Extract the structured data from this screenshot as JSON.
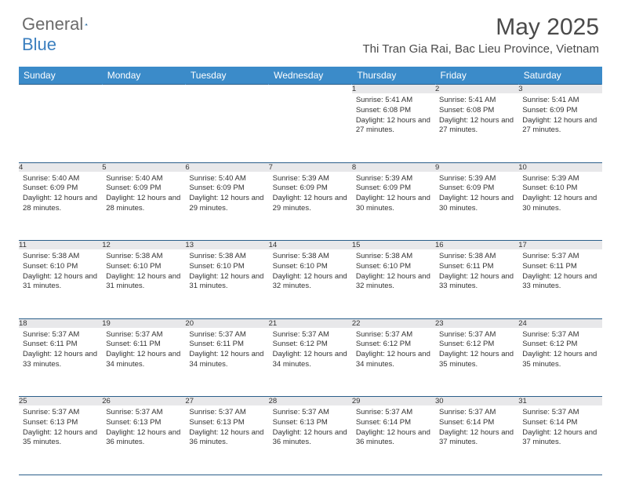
{
  "brand": {
    "word1": "General",
    "word2": "Blue"
  },
  "title": "May 2025",
  "location": "Thi Tran Gia Rai, Bac Lieu Province, Vietnam",
  "colors": {
    "header_bg": "#3b8bc9",
    "header_text": "#ffffff",
    "row_border": "#2b5f8a",
    "daynum_bg": "#e8e8ea",
    "page_bg": "#ffffff",
    "brand_gray": "#6b6b6b",
    "brand_blue": "#3b7fbf"
  },
  "fonts": {
    "title_size_pt": 22,
    "location_size_pt": 11,
    "weekday_size_pt": 9,
    "cell_size_pt": 7,
    "daynum_size_pt": 8
  },
  "layout": {
    "columns": 7,
    "weeks": 5,
    "first_day_column_index": 4
  },
  "weekdays": [
    "Sunday",
    "Monday",
    "Tuesday",
    "Wednesday",
    "Thursday",
    "Friday",
    "Saturday"
  ],
  "days": [
    {
      "n": 1,
      "sunrise": "5:41 AM",
      "sunset": "6:08 PM",
      "daylight": "12 hours and 27 minutes."
    },
    {
      "n": 2,
      "sunrise": "5:41 AM",
      "sunset": "6:08 PM",
      "daylight": "12 hours and 27 minutes."
    },
    {
      "n": 3,
      "sunrise": "5:41 AM",
      "sunset": "6:09 PM",
      "daylight": "12 hours and 27 minutes."
    },
    {
      "n": 4,
      "sunrise": "5:40 AM",
      "sunset": "6:09 PM",
      "daylight": "12 hours and 28 minutes."
    },
    {
      "n": 5,
      "sunrise": "5:40 AM",
      "sunset": "6:09 PM",
      "daylight": "12 hours and 28 minutes."
    },
    {
      "n": 6,
      "sunrise": "5:40 AM",
      "sunset": "6:09 PM",
      "daylight": "12 hours and 29 minutes."
    },
    {
      "n": 7,
      "sunrise": "5:39 AM",
      "sunset": "6:09 PM",
      "daylight": "12 hours and 29 minutes."
    },
    {
      "n": 8,
      "sunrise": "5:39 AM",
      "sunset": "6:09 PM",
      "daylight": "12 hours and 30 minutes."
    },
    {
      "n": 9,
      "sunrise": "5:39 AM",
      "sunset": "6:09 PM",
      "daylight": "12 hours and 30 minutes."
    },
    {
      "n": 10,
      "sunrise": "5:39 AM",
      "sunset": "6:10 PM",
      "daylight": "12 hours and 30 minutes."
    },
    {
      "n": 11,
      "sunrise": "5:38 AM",
      "sunset": "6:10 PM",
      "daylight": "12 hours and 31 minutes."
    },
    {
      "n": 12,
      "sunrise": "5:38 AM",
      "sunset": "6:10 PM",
      "daylight": "12 hours and 31 minutes."
    },
    {
      "n": 13,
      "sunrise": "5:38 AM",
      "sunset": "6:10 PM",
      "daylight": "12 hours and 31 minutes."
    },
    {
      "n": 14,
      "sunrise": "5:38 AM",
      "sunset": "6:10 PM",
      "daylight": "12 hours and 32 minutes."
    },
    {
      "n": 15,
      "sunrise": "5:38 AM",
      "sunset": "6:10 PM",
      "daylight": "12 hours and 32 minutes."
    },
    {
      "n": 16,
      "sunrise": "5:38 AM",
      "sunset": "6:11 PM",
      "daylight": "12 hours and 33 minutes."
    },
    {
      "n": 17,
      "sunrise": "5:37 AM",
      "sunset": "6:11 PM",
      "daylight": "12 hours and 33 minutes."
    },
    {
      "n": 18,
      "sunrise": "5:37 AM",
      "sunset": "6:11 PM",
      "daylight": "12 hours and 33 minutes."
    },
    {
      "n": 19,
      "sunrise": "5:37 AM",
      "sunset": "6:11 PM",
      "daylight": "12 hours and 34 minutes."
    },
    {
      "n": 20,
      "sunrise": "5:37 AM",
      "sunset": "6:11 PM",
      "daylight": "12 hours and 34 minutes."
    },
    {
      "n": 21,
      "sunrise": "5:37 AM",
      "sunset": "6:12 PM",
      "daylight": "12 hours and 34 minutes."
    },
    {
      "n": 22,
      "sunrise": "5:37 AM",
      "sunset": "6:12 PM",
      "daylight": "12 hours and 34 minutes."
    },
    {
      "n": 23,
      "sunrise": "5:37 AM",
      "sunset": "6:12 PM",
      "daylight": "12 hours and 35 minutes."
    },
    {
      "n": 24,
      "sunrise": "5:37 AM",
      "sunset": "6:12 PM",
      "daylight": "12 hours and 35 minutes."
    },
    {
      "n": 25,
      "sunrise": "5:37 AM",
      "sunset": "6:13 PM",
      "daylight": "12 hours and 35 minutes."
    },
    {
      "n": 26,
      "sunrise": "5:37 AM",
      "sunset": "6:13 PM",
      "daylight": "12 hours and 36 minutes."
    },
    {
      "n": 27,
      "sunrise": "5:37 AM",
      "sunset": "6:13 PM",
      "daylight": "12 hours and 36 minutes."
    },
    {
      "n": 28,
      "sunrise": "5:37 AM",
      "sunset": "6:13 PM",
      "daylight": "12 hours and 36 minutes."
    },
    {
      "n": 29,
      "sunrise": "5:37 AM",
      "sunset": "6:14 PM",
      "daylight": "12 hours and 36 minutes."
    },
    {
      "n": 30,
      "sunrise": "5:37 AM",
      "sunset": "6:14 PM",
      "daylight": "12 hours and 37 minutes."
    },
    {
      "n": 31,
      "sunrise": "5:37 AM",
      "sunset": "6:14 PM",
      "daylight": "12 hours and 37 minutes."
    }
  ],
  "labels": {
    "sunrise": "Sunrise:",
    "sunset": "Sunset:",
    "daylight": "Daylight:"
  }
}
